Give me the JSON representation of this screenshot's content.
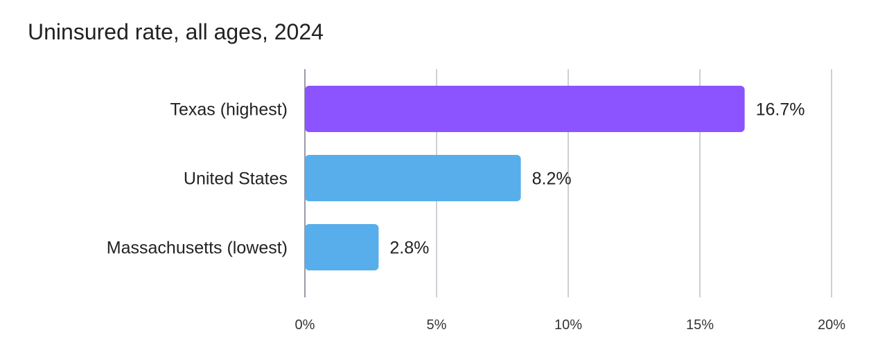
{
  "chart_data": {
    "type": "bar",
    "orientation": "horizontal",
    "title": "Uninsured rate, all ages, 2024",
    "categories": [
      "Texas (highest)",
      "United States",
      "Massachusetts (lowest)"
    ],
    "values": [
      16.7,
      8.2,
      2.8
    ],
    "value_labels": [
      "16.7%",
      "8.2%",
      "2.8%"
    ],
    "colors": [
      "#8b54ff",
      "#58aeeb",
      "#58aeeb"
    ],
    "xlim": [
      0,
      20
    ],
    "xticks": [
      0,
      5,
      10,
      15,
      20
    ],
    "xtick_labels": [
      "0%",
      "5%",
      "10%",
      "15%",
      "20%"
    ],
    "xlabel": "",
    "ylabel": "",
    "grid": true,
    "legend": "none"
  }
}
